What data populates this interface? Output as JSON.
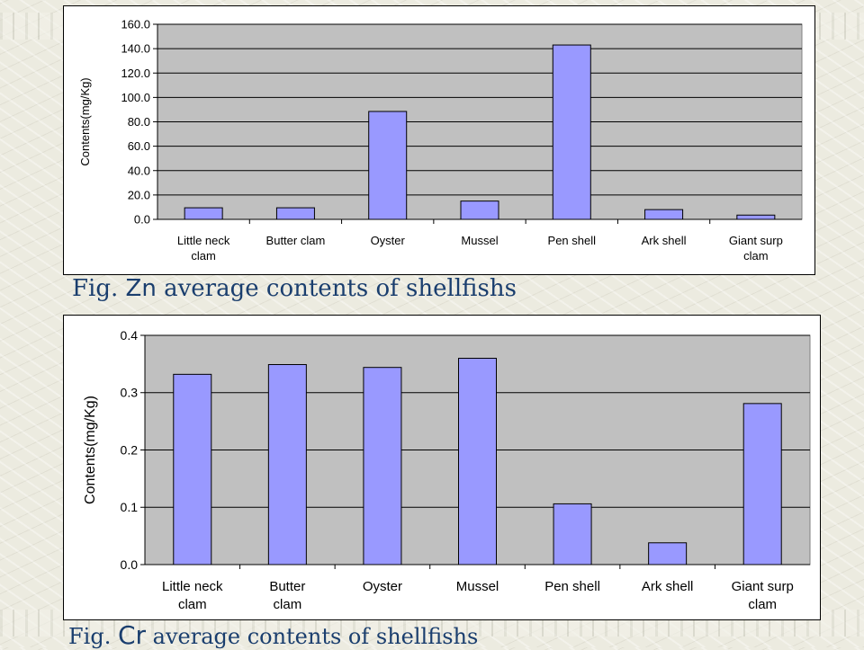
{
  "colors": {
    "plot_bg": "#c0c0c0",
    "bar_fill": "#9999ff",
    "bar_stroke": "#000000",
    "caption": "#1a3e6e"
  },
  "chart_data": [
    {
      "type": "bar",
      "ylabel": "Contents(mg/Kg)",
      "categories": [
        [
          "Little neck",
          "clam"
        ],
        [
          "Butter clam"
        ],
        [
          "Oyster"
        ],
        [
          "Mussel"
        ],
        [
          "Pen shell"
        ],
        [
          "Ark shell"
        ],
        [
          "Giant surp",
          "clam"
        ]
      ],
      "values": [
        9.5,
        9.5,
        88.5,
        15.0,
        143.0,
        8.0,
        3.5
      ],
      "ylim": [
        0,
        160
      ],
      "yticks": [
        "0.0",
        "20.0",
        "40.0",
        "60.0",
        "80.0",
        "100.0",
        "120.0",
        "140.0",
        "160.0"
      ],
      "grid": true,
      "legend": "none"
    },
    {
      "type": "bar",
      "ylabel": "Contents(mg/Kg)",
      "categories": [
        [
          "Little neck",
          "clam"
        ],
        [
          "Butter",
          "clam"
        ],
        [
          "Oyster"
        ],
        [
          "Mussel"
        ],
        [
          "Pen shell"
        ],
        [
          "Ark shell"
        ],
        [
          "Giant surp",
          "clam"
        ]
      ],
      "values": [
        0.332,
        0.349,
        0.344,
        0.36,
        0.106,
        0.038,
        0.281
      ],
      "ylim": [
        0,
        0.4
      ],
      "yticks": [
        "0.0",
        "0.1",
        "0.2",
        "0.3",
        "0.4"
      ],
      "grid": true,
      "legend": "none"
    }
  ],
  "captions": {
    "zn": {
      "prefix": "Fig. ",
      "element": "Zn",
      "suffix": " average contents of shellfishs"
    },
    "cr": {
      "prefix": "Fig. ",
      "element": "Cr",
      "suffix": " average contents of shellfishs"
    }
  }
}
